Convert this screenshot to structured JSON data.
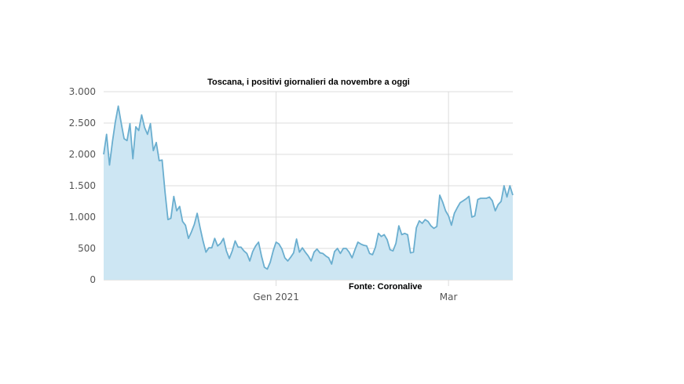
{
  "chart_data": {
    "type": "area",
    "title": "Toscana, i positivi giornalieri da novembre a oggi",
    "source": "Fonte: Coronalive",
    "xlabel": "",
    "ylabel": "",
    "ylim": [
      0,
      3000
    ],
    "yticks": [
      0,
      500,
      1000,
      1500,
      2000,
      2500,
      3000
    ],
    "ytick_labels": [
      "0",
      "500",
      "1.000",
      "1.500",
      "2.000",
      "2.500",
      "3.000"
    ],
    "xticks": [
      {
        "label": "Gen 2021",
        "index": 59
      },
      {
        "label": "Mar",
        "index": 118
      }
    ],
    "grid": true,
    "colors": {
      "line": "#6aaecf",
      "fill": "#cde6f3"
    },
    "series": [
      {
        "values": [
          2000,
          2320,
          1830,
          2200,
          2520,
          2770,
          2500,
          2250,
          2220,
          2490,
          1930,
          2440,
          2380,
          2630,
          2430,
          2320,
          2490,
          2060,
          2190,
          1900,
          1910,
          1400,
          960,
          980,
          1330,
          1100,
          1170,
          930,
          870,
          660,
          760,
          880,
          1060,
          830,
          620,
          440,
          510,
          510,
          660,
          540,
          580,
          660,
          460,
          340,
          460,
          620,
          520,
          520,
          460,
          420,
          300,
          450,
          540,
          600,
          380,
          200,
          170,
          280,
          460,
          600,
          570,
          490,
          350,
          300,
          360,
          430,
          650,
          440,
          510,
          440,
          380,
          300,
          440,
          490,
          430,
          420,
          380,
          350,
          250,
          450,
          500,
          420,
          500,
          500,
          440,
          350,
          480,
          600,
          570,
          550,
          540,
          420,
          400,
          520,
          740,
          690,
          720,
          640,
          480,
          460,
          580,
          860,
          720,
          740,
          720,
          430,
          440,
          830,
          940,
          900,
          960,
          930,
          860,
          820,
          850,
          1350,
          1240,
          1100,
          1020,
          870,
          1060,
          1150,
          1230,
          1260,
          1290,
          1330,
          1000,
          1020,
          1280,
          1300,
          1300,
          1300,
          1320,
          1260,
          1100,
          1200,
          1250,
          1500,
          1320,
          1500,
          1350
        ]
      }
    ]
  }
}
